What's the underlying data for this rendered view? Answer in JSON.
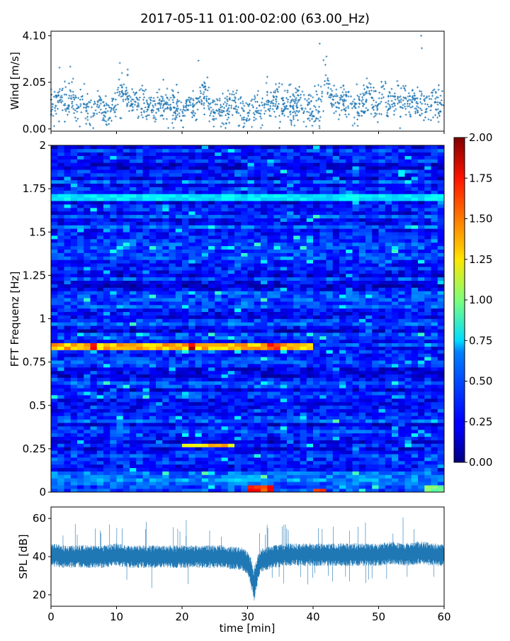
{
  "figure": {
    "title": "2017-05-11 01:00-02:00 (63.00_Hz)"
  },
  "chart_data": [
    {
      "type": "scatter",
      "panel": "wind",
      "ylabel": "Wind [m/s]",
      "xlabel": "",
      "xlim": [
        0,
        60
      ],
      "ylim": [
        -0.1,
        4.3
      ],
      "yticks": [
        0.0,
        2.05,
        4.1
      ],
      "ytick_labels": [
        "0.00",
        "2.05",
        "4.10"
      ],
      "grid": false,
      "color": "#1f77b4",
      "marker": "small +",
      "series": [
        {
          "x": [
            0,
            0.5,
            1,
            1.5,
            2,
            2.5,
            3,
            3.5,
            4,
            4.5,
            5,
            5.5,
            6,
            6.5,
            7,
            7.5,
            8,
            8.5,
            9,
            9.5,
            10,
            10.5,
            11,
            11.5,
            12,
            12.5,
            13,
            13.5,
            14,
            14.5,
            15,
            15.5,
            16,
            16.5,
            17,
            17.5,
            18,
            18.5,
            19,
            19.5,
            20,
            20.5,
            21,
            21.5,
            22,
            22.5,
            23,
            23.5,
            24,
            24.5,
            25,
            25.5,
            26,
            26.5,
            27,
            27.5,
            28,
            28.5,
            29,
            29.5,
            30,
            30.5,
            31,
            31.5,
            32,
            32.5,
            33,
            33.5,
            34,
            34.5,
            35,
            35.5,
            36,
            36.5,
            37,
            37.5,
            38,
            38.5,
            39,
            39.5,
            40,
            40.5,
            41,
            41.5,
            42,
            42.5,
            43,
            43.5,
            44,
            44.5,
            45,
            45.5,
            46,
            46.5,
            47,
            47.5,
            48,
            48.5,
            49,
            49.5,
            50,
            50.5,
            51,
            51.5,
            52,
            52.5,
            53,
            53.5,
            54,
            54.5,
            55,
            55.5,
            56,
            56.5,
            57,
            57.5,
            58,
            58.5,
            59,
            59.5,
            60
          ],
          "y": [
            0.9,
            1.1,
            1.2,
            1.6,
            1.3,
            1.0,
            1.5,
            1.2,
            0.8,
            1.0,
            1.1,
            0.9,
            0.8,
            0.7,
            0.8,
            1.0,
            0.8,
            0.9,
            0.7,
            0.9,
            1.0,
            1.6,
            1.4,
            1.8,
            1.1,
            1.0,
            1.2,
            0.9,
            1.1,
            1.0,
            0.8,
            1.0,
            0.9,
            0.8,
            0.9,
            1.2,
            1.0,
            1.1,
            0.8,
            0.9,
            0.7,
            0.9,
            1.0,
            0.8,
            1.0,
            1.4,
            1.2,
            1.8,
            1.3,
            0.9,
            0.8,
            1.0,
            0.9,
            0.8,
            0.9,
            1.0,
            1.1,
            0.8,
            0.9,
            0.7,
            0.8,
            0.9,
            0.9,
            1.0,
            0.8,
            1.0,
            1.2,
            1.0,
            1.4,
            1.3,
            1.1,
            1.0,
            1.2,
            1.0,
            0.9,
            1.1,
            1.3,
            1.0,
            0.8,
            1.0,
            0.9,
            1.0,
            0.6,
            1.8,
            2.2,
            1.6,
            1.3,
            1.1,
            1.0,
            1.3,
            1.2,
            1.4,
            1.0,
            0.9,
            1.0,
            1.2,
            1.1,
            1.6,
            1.3,
            1.2,
            1.1,
            1.4,
            1.6,
            1.0,
            1.2,
            1.1,
            1.3,
            1.0,
            1.4,
            1.2,
            1.1,
            1.3,
            1.0,
            1.2,
            0.9,
            1.0,
            1.1,
            1.2,
            1.0,
            1.1,
            1.3
          ]
        }
      ]
    },
    {
      "type": "heatmap",
      "panel": "spectrogram",
      "ylabel": "FFT Frequenz [Hz]",
      "xlabel": "",
      "xlim": [
        0,
        60
      ],
      "ylim": [
        0,
        2
      ],
      "yticks": [
        0,
        0.25,
        0.5,
        0.75,
        1,
        1.25,
        1.5,
        1.75,
        2
      ],
      "ytick_labels": [
        "0",
        "0.25",
        "0.5",
        "0.75",
        "1",
        "1.25",
        "1.5",
        "1.75",
        "2"
      ],
      "colormap": "jet",
      "clim": [
        0,
        2
      ],
      "colorbar_ticks": [
        0.0,
        0.25,
        0.5,
        0.75,
        1.0,
        1.25,
        1.5,
        1.75,
        2.0
      ],
      "colorbar_tick_labels": [
        "0.00",
        "0.25",
        "0.50",
        "0.75",
        "1.00",
        "1.25",
        "1.50",
        "1.75",
        "2.00"
      ],
      "time_bins": 60,
      "freq_bins": 100,
      "baseline": 0.3,
      "features": [
        {
          "freq": [
            0.82,
            0.85
          ],
          "time": [
            0,
            40
          ],
          "level": 1.45
        },
        {
          "freq": [
            0.82,
            0.85
          ],
          "time": [
            6,
            7
          ],
          "level": 2.0
        },
        {
          "freq": [
            0.82,
            0.85
          ],
          "time": [
            21,
            22
          ],
          "level": 1.9
        },
        {
          "freq": [
            0.82,
            0.85
          ],
          "time": [
            33,
            35
          ],
          "level": 1.7
        },
        {
          "freq": [
            0.27,
            0.29
          ],
          "time": [
            20,
            28
          ],
          "level": 1.4
        },
        {
          "freq": [
            0.0,
            0.04
          ],
          "time": [
            30,
            34
          ],
          "level": 1.8
        },
        {
          "freq": [
            0.0,
            0.02
          ],
          "time": [
            40,
            42
          ],
          "level": 1.75
        },
        {
          "freq": [
            0.0,
            0.04
          ],
          "time": [
            57,
            60
          ],
          "level": 1.0
        },
        {
          "freq": [
            1.68,
            1.72
          ],
          "time": [
            0,
            60
          ],
          "level": 0.75
        }
      ]
    },
    {
      "type": "line",
      "panel": "spl",
      "ylabel": "SPL [dB]",
      "xlabel": "time [min]",
      "xlim": [
        0,
        60
      ],
      "ylim": [
        14,
        66
      ],
      "xticks": [
        0,
        10,
        20,
        30,
        40,
        50,
        60
      ],
      "xtick_labels": [
        "0",
        "10",
        "20",
        "30",
        "40",
        "50",
        "60"
      ],
      "yticks": [
        20,
        40,
        60
      ],
      "ytick_labels": [
        "20",
        "40",
        "60"
      ],
      "grid": false,
      "color": "#1f77b4",
      "series": [
        {
          "x": [
            0,
            2,
            4,
            6,
            8,
            10,
            12,
            14,
            16,
            18,
            20,
            22,
            24,
            26,
            28,
            29,
            30,
            30.5,
            31,
            31.5,
            32,
            34,
            36,
            38,
            40,
            42,
            44,
            46,
            48,
            50,
            52,
            54,
            56,
            57,
            58,
            60
          ],
          "mean": [
            41,
            40,
            40,
            40,
            40,
            41,
            40,
            40,
            40,
            40,
            40,
            40,
            40,
            40,
            39,
            39,
            37,
            32,
            25,
            33,
            38,
            40,
            41,
            41,
            41,
            41,
            41,
            41,
            41,
            41,
            42,
            41,
            42,
            42,
            41,
            41
          ],
          "spread": [
            4,
            4,
            4,
            4,
            4,
            4,
            4,
            4,
            4,
            4,
            4,
            4,
            4,
            4,
            4,
            4,
            4,
            5,
            6,
            5,
            4,
            4,
            4,
            4,
            4,
            4,
            4,
            4,
            4,
            4,
            4,
            4,
            4,
            4,
            4,
            4
          ]
        }
      ]
    }
  ]
}
